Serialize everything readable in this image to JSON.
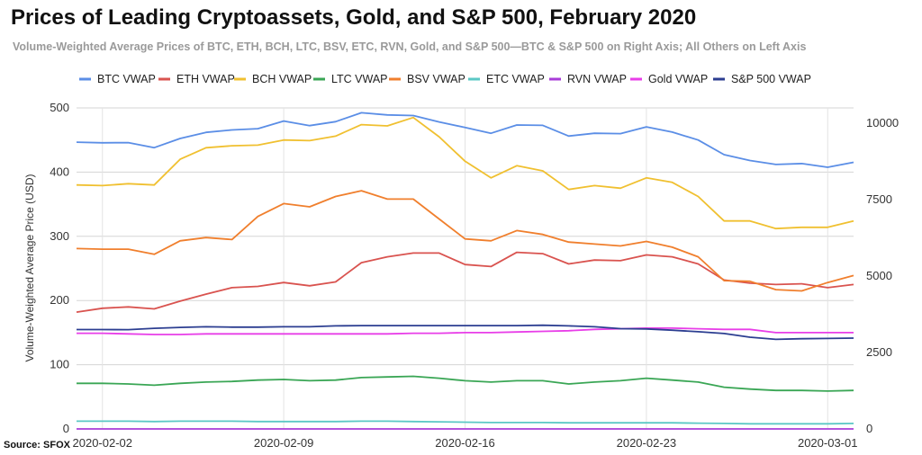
{
  "header": {
    "title": "Prices of Leading Cryptoassets, Gold, and S&P 500, February 2020",
    "subtitle": "Volume-Weighted Average Prices of BTC, ETH, BCH, LTC, BSV, ETC, RVN, Gold, and S&P 500—BTC & S&P 500 on Right Axis; All Others on Left Axis",
    "source": "Source: SFOX"
  },
  "chart_data": {
    "type": "line",
    "title": "Prices of Leading Cryptoassets, Gold, and S&P 500, February 2020",
    "ylabel": "Volume-Weighted Average Price (USD)",
    "ylim_left": [
      0,
      500
    ],
    "ylim_right": [
      0,
      10500
    ],
    "yticks_left": [
      "0",
      "100",
      "200",
      "300",
      "400",
      "500"
    ],
    "yticks_right": [
      "0",
      "2500",
      "5000",
      "7500",
      "10000"
    ],
    "xtick_labels": [
      "2020-02-02",
      "2020-02-09",
      "2020-02-16",
      "2020-02-23",
      "2020-03-01"
    ],
    "x": [
      "2020-02-01",
      "2020-02-02",
      "2020-02-03",
      "2020-02-04",
      "2020-02-05",
      "2020-02-06",
      "2020-02-07",
      "2020-02-08",
      "2020-02-09",
      "2020-02-10",
      "2020-02-11",
      "2020-02-12",
      "2020-02-13",
      "2020-02-14",
      "2020-02-15",
      "2020-02-16",
      "2020-02-17",
      "2020-02-18",
      "2020-02-19",
      "2020-02-20",
      "2020-02-21",
      "2020-02-22",
      "2020-02-23",
      "2020-02-24",
      "2020-02-25",
      "2020-02-26",
      "2020-02-27",
      "2020-02-28",
      "2020-02-29",
      "2020-03-01",
      "2020-03-02"
    ],
    "grid": true,
    "legend_position": "top",
    "series": [
      {
        "name": "BTC VWAP",
        "axis": "right",
        "color": "#5b8ee6",
        "values": [
          9380,
          9360,
          9365,
          9200,
          9500,
          9700,
          9780,
          9820,
          10070,
          9920,
          10050,
          10340,
          10270,
          10250,
          10040,
          9860,
          9670,
          9940,
          9930,
          9580,
          9670,
          9660,
          9880,
          9710,
          9450,
          8970,
          8780,
          8650,
          8680,
          8560,
          8720
        ]
      },
      {
        "name": "ETH VWAP",
        "axis": "left",
        "color": "#d9534f",
        "values": [
          182,
          188,
          190,
          187,
          199,
          210,
          220,
          222,
          228,
          223,
          229,
          259,
          268,
          274,
          274,
          256,
          253,
          275,
          273,
          257,
          263,
          262,
          271,
          268,
          257,
          232,
          227,
          225,
          226,
          220,
          225
        ]
      },
      {
        "name": "BCH VWAP",
        "axis": "left",
        "color": "#f0c030",
        "values": [
          380,
          379,
          382,
          380,
          420,
          438,
          441,
          442,
          450,
          449,
          456,
          474,
          472,
          485,
          455,
          417,
          391,
          410,
          402,
          373,
          379,
          375,
          391,
          384,
          362,
          324,
          324,
          312,
          314,
          314,
          324
        ]
      },
      {
        "name": "LTC VWAP",
        "axis": "left",
        "color": "#3aa655",
        "values": [
          71,
          71,
          70,
          68,
          71,
          73,
          74,
          76,
          77,
          75,
          76,
          80,
          81,
          82,
          79,
          75,
          73,
          75,
          75,
          70,
          73,
          75,
          79,
          76,
          73,
          65,
          62,
          60,
          60,
          59,
          60
        ]
      },
      {
        "name": "BSV VWAP",
        "axis": "left",
        "color": "#f07f2d",
        "values": [
          281,
          280,
          280,
          272,
          293,
          298,
          295,
          331,
          351,
          346,
          362,
          371,
          358,
          358,
          327,
          296,
          293,
          309,
          303,
          291,
          288,
          285,
          292,
          283,
          268,
          231,
          230,
          217,
          215,
          228,
          239
        ]
      },
      {
        "name": "ETC VWAP",
        "axis": "left",
        "color": "#5bc8c5",
        "values": [
          12,
          12,
          12,
          11.5,
          12,
          12,
          12,
          11.5,
          11.5,
          11.5,
          11.5,
          12,
          12,
          11.5,
          11,
          10.5,
          10,
          10,
          10,
          9.5,
          9.5,
          9.5,
          9.5,
          9.5,
          9,
          8.5,
          8,
          8,
          8,
          8,
          8.5
        ]
      },
      {
        "name": "RVN VWAP",
        "axis": "left",
        "color": "#a83cd8",
        "values": [
          0.03,
          0.03,
          0.03,
          0.03,
          0.03,
          0.03,
          0.03,
          0.03,
          0.03,
          0.03,
          0.03,
          0.03,
          0.03,
          0.03,
          0.03,
          0.03,
          0.03,
          0.03,
          0.03,
          0.03,
          0.03,
          0.03,
          0.03,
          0.03,
          0.03,
          0.03,
          0.03,
          0.03,
          0.03,
          0.03,
          0.03
        ]
      },
      {
        "name": "Gold VWAP",
        "axis": "left",
        "color": "#e83ee8",
        "values": [
          149,
          149,
          148,
          147,
          147,
          148,
          148,
          148,
          148,
          148,
          148,
          148,
          148,
          149,
          149,
          150,
          150,
          151,
          152,
          153,
          155,
          156,
          157,
          157,
          156,
          155,
          155,
          150,
          150,
          150,
          150
        ]
      },
      {
        "name": "S&P 500 VWAP",
        "axis": "right",
        "color": "#2c3e91",
        "values": [
          3250,
          3250,
          3248,
          3290,
          3320,
          3340,
          3330,
          3330,
          3340,
          3340,
          3370,
          3380,
          3380,
          3380,
          3380,
          3380,
          3380,
          3380,
          3390,
          3370,
          3340,
          3280,
          3270,
          3230,
          3180,
          3120,
          3000,
          2930,
          2950,
          2960,
          2970
        ]
      }
    ]
  }
}
